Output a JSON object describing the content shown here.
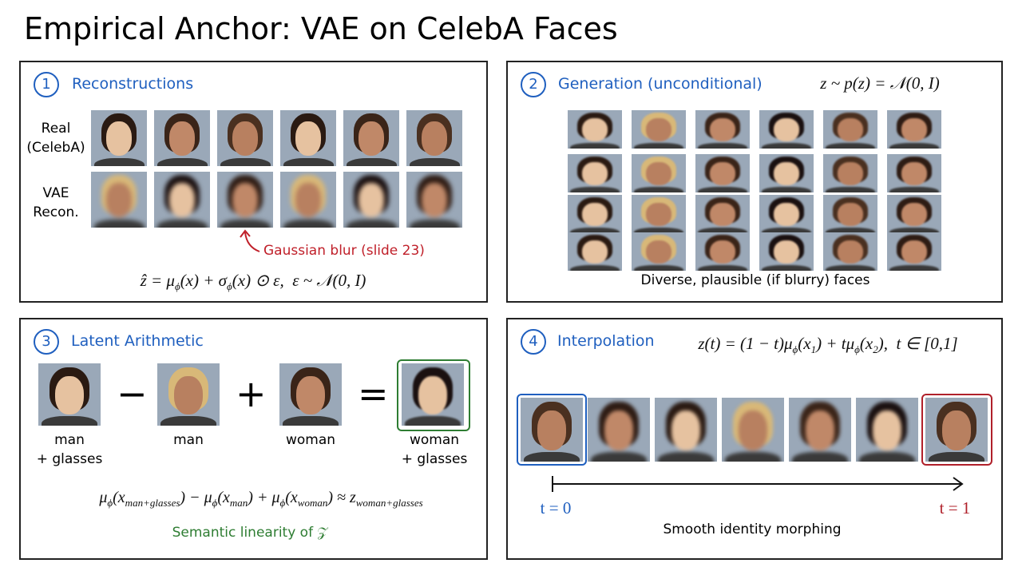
{
  "title": "Empirical Anchor: VAE on CelebA Faces",
  "panels": [
    {
      "number": "1",
      "title": "Reconstructions",
      "row_labels": [
        [
          "Real",
          "(CelebA)"
        ],
        [
          "VAE",
          "Recon."
        ]
      ],
      "annotation": "Gaussian blur (slide 23)",
      "formula": [
        [
          "ẑ = μ",
          "ϕ"
        ],
        [
          "(x) + σ",
          "ϕ"
        ],
        [
          "(x) ⊙ ε,  ε ~ 𝒩(0, I)"
        ]
      ]
    },
    {
      "number": "2",
      "title": "Generation (unconditional)",
      "formula": [
        [
          "z ~ p(z) = 𝒩(0, I)"
        ]
      ],
      "caption": "Diverse, plausible (if blurry) faces"
    },
    {
      "number": "3",
      "title": "Latent Arithmetic",
      "operators": [
        "−",
        "+",
        "="
      ],
      "labels": [
        [
          "man",
          "+ glasses"
        ],
        [
          "man"
        ],
        [
          "woman"
        ],
        [
          "woman",
          "+ glasses"
        ]
      ],
      "formula": [
        [
          "μ",
          "ϕ"
        ],
        [
          "(x",
          "man+glasses"
        ],
        [
          ") − μ",
          "ϕ"
        ],
        [
          "(x",
          "man"
        ],
        [
          ") + μ",
          "ϕ"
        ],
        [
          "(x",
          "woman"
        ],
        [
          ") ≈ z",
          "woman+glasses"
        ]
      ],
      "caption": "Semantic linearity of 𝒵"
    },
    {
      "number": "4",
      "title": "Interpolation",
      "formula": [
        [
          "z(t) = (1 − t)μ",
          "ϕ"
        ],
        [
          "(x",
          "1"
        ],
        [
          ") + tμ",
          "ϕ"
        ],
        [
          "(x",
          "2"
        ],
        [
          "),  t ∈ [0,1]"
        ]
      ],
      "start_label": "t = 0",
      "end_label": "t = 1",
      "caption": "Smooth identity morphing"
    }
  ]
}
